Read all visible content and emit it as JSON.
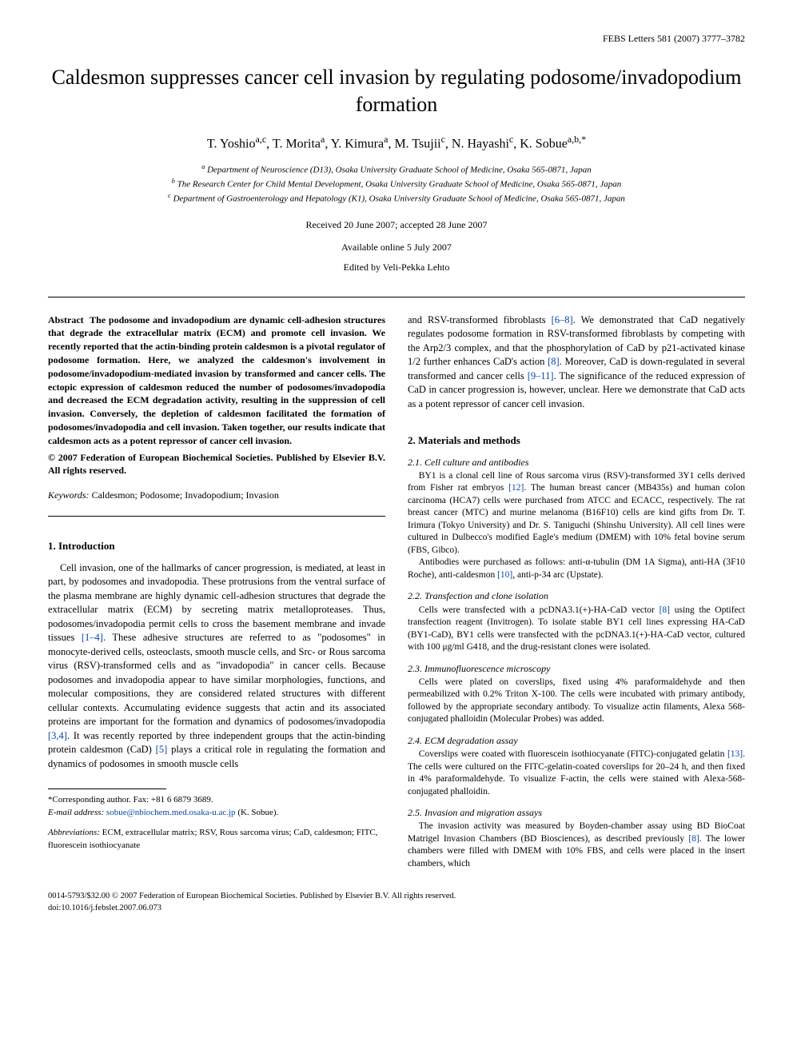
{
  "journal_header": "FEBS Letters 581 (2007) 3777–3782",
  "title": "Caldesmon suppresses cancer cell invasion by regulating podosome/invadopodium formation",
  "authors_html": "T. Yoshio<sup>a,c</sup>, T. Morita<sup>a</sup>, Y. Kimura<sup>a</sup>, M. Tsujii<sup>c</sup>, N. Hayashi<sup>c</sup>, K. Sobue<sup>a,b,*</sup>",
  "affiliations": [
    "<sup>a</sup> Department of Neuroscience (D13), Osaka University Graduate School of Medicine, Osaka 565-0871, Japan",
    "<sup>b</sup> The Research Center for Child Mental Development, Osaka University Graduate School of Medicine, Osaka 565-0871, Japan",
    "<sup>c</sup> Department of Gastroenterology and Hepatology (K1), Osaka University Graduate School of Medicine, Osaka 565-0871, Japan"
  ],
  "received": "Received 20 June 2007; accepted 28 June 2007",
  "available": "Available online 5 July 2007",
  "editor": "Edited by Veli-Pekka Lehto",
  "abstract_label": "Abstract",
  "abstract_text": "The podosome and invadopodium are dynamic cell-adhesion structures that degrade the extracellular matrix (ECM) and promote cell invasion. We recently reported that the actin-binding protein caldesmon is a pivotal regulator of podosome formation. Here, we analyzed the caldesmon's involvement in podosome/invadopodium-mediated invasion by transformed and cancer cells. The ectopic expression of caldesmon reduced the number of podosomes/invadopodia and decreased the ECM degradation activity, resulting in the suppression of cell invasion. Conversely, the depletion of caldesmon facilitated the formation of podosomes/invadopodia and cell invasion. Taken together, our results indicate that caldesmon acts as a potent repressor of cancer cell invasion.",
  "copyright": "© 2007 Federation of European Biochemical Societies. Published by Elsevier B.V. All rights reserved.",
  "keywords_label": "Keywords:",
  "keywords_text": "Caldesmon; Podosome; Invadopodium; Invasion",
  "intro_heading": "1. Introduction",
  "intro_p1": "Cell invasion, one of the hallmarks of cancer progression, is mediated, at least in part, by podosomes and invadopodia. These protrusions from the ventral surface of the plasma membrane are highly dynamic cell-adhesion structures that degrade the extracellular matrix (ECM) by secreting matrix metalloproteases. Thus, podosomes/invadopodia permit cells to cross the basement membrane and invade tissues <span class=\"ref-link\">[1–4]</span>. These adhesive structures are referred to as \"podosomes\" in monocyte-derived cells, osteoclasts, smooth muscle cells, and Src- or Rous sarcoma virus (RSV)-transformed cells and as \"invadopodia\" in cancer cells. Because podosomes and invadopodia appear to have similar morphologies, functions, and molecular compositions, they are considered related structures with different cellular contexts. Accumulating evidence suggests that actin and its associated proteins are important for the formation and dynamics of podosomes/invadopodia <span class=\"ref-link\">[3,4]</span>. It was recently reported by three independent groups that the actin-binding protein caldesmon (CaD) <span class=\"ref-link\">[5]</span> plays a critical role in regulating the formation and dynamics of podosomes in smooth muscle cells",
  "col2_top": "and RSV-transformed fibroblasts <span class=\"ref-link\">[6–8]</span>. We demonstrated that CaD negatively regulates podosome formation in RSV-transformed fibroblasts by competing with the Arp2/3 complex, and that the phosphorylation of CaD by p21-activated kinase 1/2 further enhances CaD's action <span class=\"ref-link\">[8]</span>. Moreover, CaD is down-regulated in several transformed and cancer cells <span class=\"ref-link\">[9–11]</span>. The significance of the reduced expression of CaD in cancer progression is, however, unclear. Here we demonstrate that CaD acts as a potent repressor of cancer cell invasion.",
  "methods_heading": "2. Materials and methods",
  "sub21_heading": "2.1. Cell culture and antibodies",
  "sub21_p1": "BY1 is a clonal cell line of Rous sarcoma virus (RSV)-transformed 3Y1 cells derived from Fisher rat embryos <span class=\"ref-link\">[12]</span>. The human breast cancer (MB435s) and human colon carcinoma (HCA7) cells were purchased from ATCC and ECACC, respectively. The rat breast cancer (MTC) and murine melanoma (B16F10) cells are kind gifts from Dr. T. Irimura (Tokyo University) and Dr. S. Taniguchi (Shinshu University). All cell lines were cultured in Dulbecco's modified Eagle's medium (DMEM) with 10% fetal bovine serum (FBS, Gibco).",
  "sub21_p2": "Antibodies were purchased as follows: anti-α-tubulin (DM 1A Sigma), anti-HA (3F10 Roche), anti-caldesmon <span class=\"ref-link\">[10]</span>, anti-p-34 arc (Upstate).",
  "sub22_heading": "2.2. Transfection and clone isolation",
  "sub22_p": "Cells were transfected with a pcDNA3.1(+)-HA-CaD vector <span class=\"ref-link\">[8]</span> using the Optifect transfection reagent (Invitrogen). To isolate stable BY1 cell lines expressing HA-CaD (BY1-CaD), BY1 cells were transfected with the pcDNA3.1(+)-HA-CaD vector, cultured with 100 μg/ml G418, and the drug-resistant clones were isolated.",
  "sub23_heading": "2.3. Immunofluorescence microscopy",
  "sub23_p": "Cells were plated on coverslips, fixed using 4% paraformaldehyde and then permeabilized with 0.2% Triton X-100. The cells were incubated with primary antibody, followed by the appropriate secondary antibody. To visualize actin filaments, Alexa 568-conjugated phalloidin (Molecular Probes) was added.",
  "sub24_heading": "2.4. ECM degradation assay",
  "sub24_p": "Coverslips were coated with fluorescein isothiocyanate (FITC)-conjugated gelatin <span class=\"ref-link\">[13]</span>. The cells were cultured on the FITC-gelatin-coated coverslips for 20–24 h, and then fixed in 4% paraformaldehyde. To visualize F-actin, the cells were stained with Alexa-568-conjugated phalloidin.",
  "sub25_heading": "2.5. Invasion and migration assays",
  "sub25_p": "The invasion activity was measured by Boyden-chamber assay using BD BioCoat Matrigel Invasion Chambers (BD Biosciences), as described previously <span class=\"ref-link\">[8]</span>. The lower chambers were filled with DMEM with 10% FBS, and cells were placed in the insert chambers, which",
  "footnote_corr": "*Corresponding author. Fax: +81 6 6879 3689.",
  "footnote_email_label": "E-mail address:",
  "footnote_email": "sobue@nbiochem.med.osaka-u.ac.jp",
  "footnote_email_name": "(K. Sobue).",
  "abbrev_label": "Abbreviations:",
  "abbrev_text": "ECM, extracellular matrix; RSV, Rous sarcoma virus; CaD, caldesmon; FITC, fluorescein isothiocyanate",
  "bottom_issn": "0014-5793/$32.00 © 2007 Federation of European Biochemical Societies. Published by Elsevier B.V. All rights reserved.",
  "bottom_doi": "doi:10.1016/j.febslet.2007.06.073"
}
